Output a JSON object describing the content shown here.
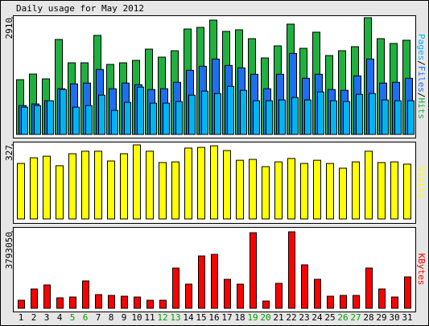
{
  "chart_data": {
    "type": "bar",
    "title": "Daily usage for May 2012",
    "categories": [
      "1",
      "2",
      "3",
      "4",
      "5",
      "6",
      "7",
      "8",
      "9",
      "10",
      "11",
      "12",
      "13",
      "14",
      "15",
      "16",
      "17",
      "18",
      "19",
      "20",
      "21",
      "22",
      "23",
      "24",
      "25",
      "26",
      "27",
      "28",
      "29",
      "30",
      "31"
    ],
    "category_colors": [
      "#000000",
      "#000000",
      "#000000",
      "#000000",
      "#00a000",
      "#00a000",
      "#000000",
      "#000000",
      "#000000",
      "#000000",
      "#000000",
      "#00a000",
      "#00a000",
      "#000000",
      "#000000",
      "#000000",
      "#000000",
      "#000000",
      "#00a000",
      "#00a000",
      "#000000",
      "#000000",
      "#000000",
      "#000000",
      "#000000",
      "#00a000",
      "#00a000",
      "#000000",
      "#000000",
      "#000000",
      "#000000"
    ],
    "panels": [
      {
        "ylim": [
          0,
          2910
        ],
        "yticks": [
          2910
        ],
        "legend_separator": "/",
        "series": [
          {
            "name": "Pages",
            "color": "#00b4f0",
            "values": [
              680,
              720,
              840,
              1120,
              680,
              720,
              980,
              600,
              800,
              1180,
              780,
              780,
              820,
              980,
              1080,
              1020,
              1200,
              1100,
              840,
              840,
              860,
              920,
              860,
              1060,
              840,
              820,
              1000,
              1020,
              860,
              840,
              840
            ]
          },
          {
            "name": "Files",
            "color": "#1e6ef0",
            "values": [
              720,
              760,
              840,
              1140,
              1260,
              1280,
              1620,
              1140,
              1280,
              1240,
              1120,
              1140,
              1300,
              1600,
              1700,
              1880,
              1720,
              1660,
              1500,
              1140,
              1500,
              2020,
              1400,
              1500,
              1120,
              1100,
              1460,
              1880,
              1280,
              1300,
              1400
            ]
          },
          {
            "name": "Hits",
            "color": "#20b040",
            "values": [
              1365,
              1505,
              1385,
              2368,
              1786,
              1786,
              2469,
              1746,
              1786,
              1846,
              2127,
              1927,
              2087,
              2629,
              2669,
              2850,
              2569,
              2609,
              2388,
              1907,
              2208,
              2750,
              2147,
              2549,
              1967,
              2087,
              2188,
              2910,
              2388,
              2268,
              2348
            ]
          }
        ]
      },
      {
        "ylim": [
          0,
          327
        ],
        "yticks": [
          327
        ],
        "series": [
          {
            "name": "Visits",
            "color": "#ffff00",
            "values": [
              245,
              270,
              277,
              235,
              288,
              299,
              299,
              256,
              288,
              327,
              299,
              249,
              252,
              313,
              316,
              323,
              302,
              259,
              263,
              231,
              252,
              267,
              245,
              259,
              245,
              224,
              252,
              299,
              249,
              252,
              242
            ]
          }
        ]
      },
      {
        "ylim": [
          0,
          3793050
        ],
        "yticks": [
          3793050
        ],
        "series": [
          {
            "name": "KBytes",
            "color": "#ff0000",
            "values": [
              399000,
              958000,
              1158000,
              519000,
              559000,
              1358000,
              679000,
              639000,
              599000,
              559000,
              399000,
              399000,
              1996000,
              1198000,
              2595000,
              2675000,
              1437000,
              1198000,
              3750000,
              359000,
              1238000,
              3793050,
              2156000,
              1437000,
              599000,
              639000,
              639000,
              1996000,
              958000,
              559000,
              1557000
            ]
          }
        ]
      }
    ]
  }
}
